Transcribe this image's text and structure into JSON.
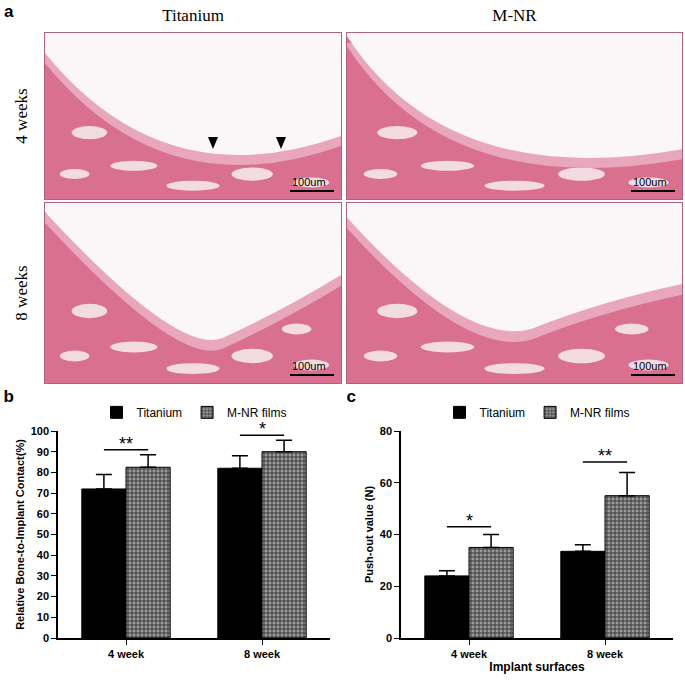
{
  "panel_a": {
    "label": "a",
    "columns": [
      "Titanium",
      "M-NR"
    ],
    "rows": [
      "4 weeks",
      "8 weeks"
    ],
    "scale_bar": "100um"
  },
  "chart_data": [
    {
      "type": "bar",
      "title": "b",
      "y_label": "Relative Bone-to-Implant Contact(%)",
      "categories": [
        "4 week",
        "8 week"
      ],
      "series": [
        {
          "name": "Titanium",
          "color": "#000000",
          "marker": "solid",
          "values": [
            72,
            82
          ],
          "errors": [
            7,
            6
          ]
        },
        {
          "name": "M-NR films",
          "color": "#9a9a9a",
          "marker": "checkered",
          "values": [
            82.5,
            90
          ],
          "errors": [
            6,
            5.5
          ]
        }
      ],
      "ylim": [
        0,
        100
      ],
      "yticks": [
        0,
        10,
        20,
        30,
        40,
        50,
        60,
        70,
        80,
        90,
        100
      ],
      "grid": false,
      "legend": "top",
      "annotations": [
        {
          "text": "**",
          "category": "4 week",
          "y": 91
        },
        {
          "text": "*",
          "category": "8 week",
          "y": 98
        }
      ]
    },
    {
      "type": "bar",
      "title": "c",
      "x_label": "Implant surfaces",
      "y_label": "Push-out value (N)",
      "categories": [
        "4 week",
        "8 week"
      ],
      "series": [
        {
          "name": "Titanium",
          "color": "#000000",
          "marker": "solid",
          "values": [
            24,
            33.5
          ],
          "errors": [
            2,
            2.5
          ]
        },
        {
          "name": "M-NR films",
          "color": "#9a9a9a",
          "marker": "checkered",
          "values": [
            35,
            55
          ],
          "errors": [
            5,
            9
          ]
        }
      ],
      "ylim": [
        0,
        80
      ],
      "yticks": [
        0,
        20,
        40,
        60,
        80
      ],
      "grid": false,
      "legend": "top",
      "annotations": [
        {
          "text": "*",
          "category": "4 week",
          "y": 43
        },
        {
          "text": "**",
          "category": "8 week",
          "y": 68
        }
      ]
    }
  ]
}
